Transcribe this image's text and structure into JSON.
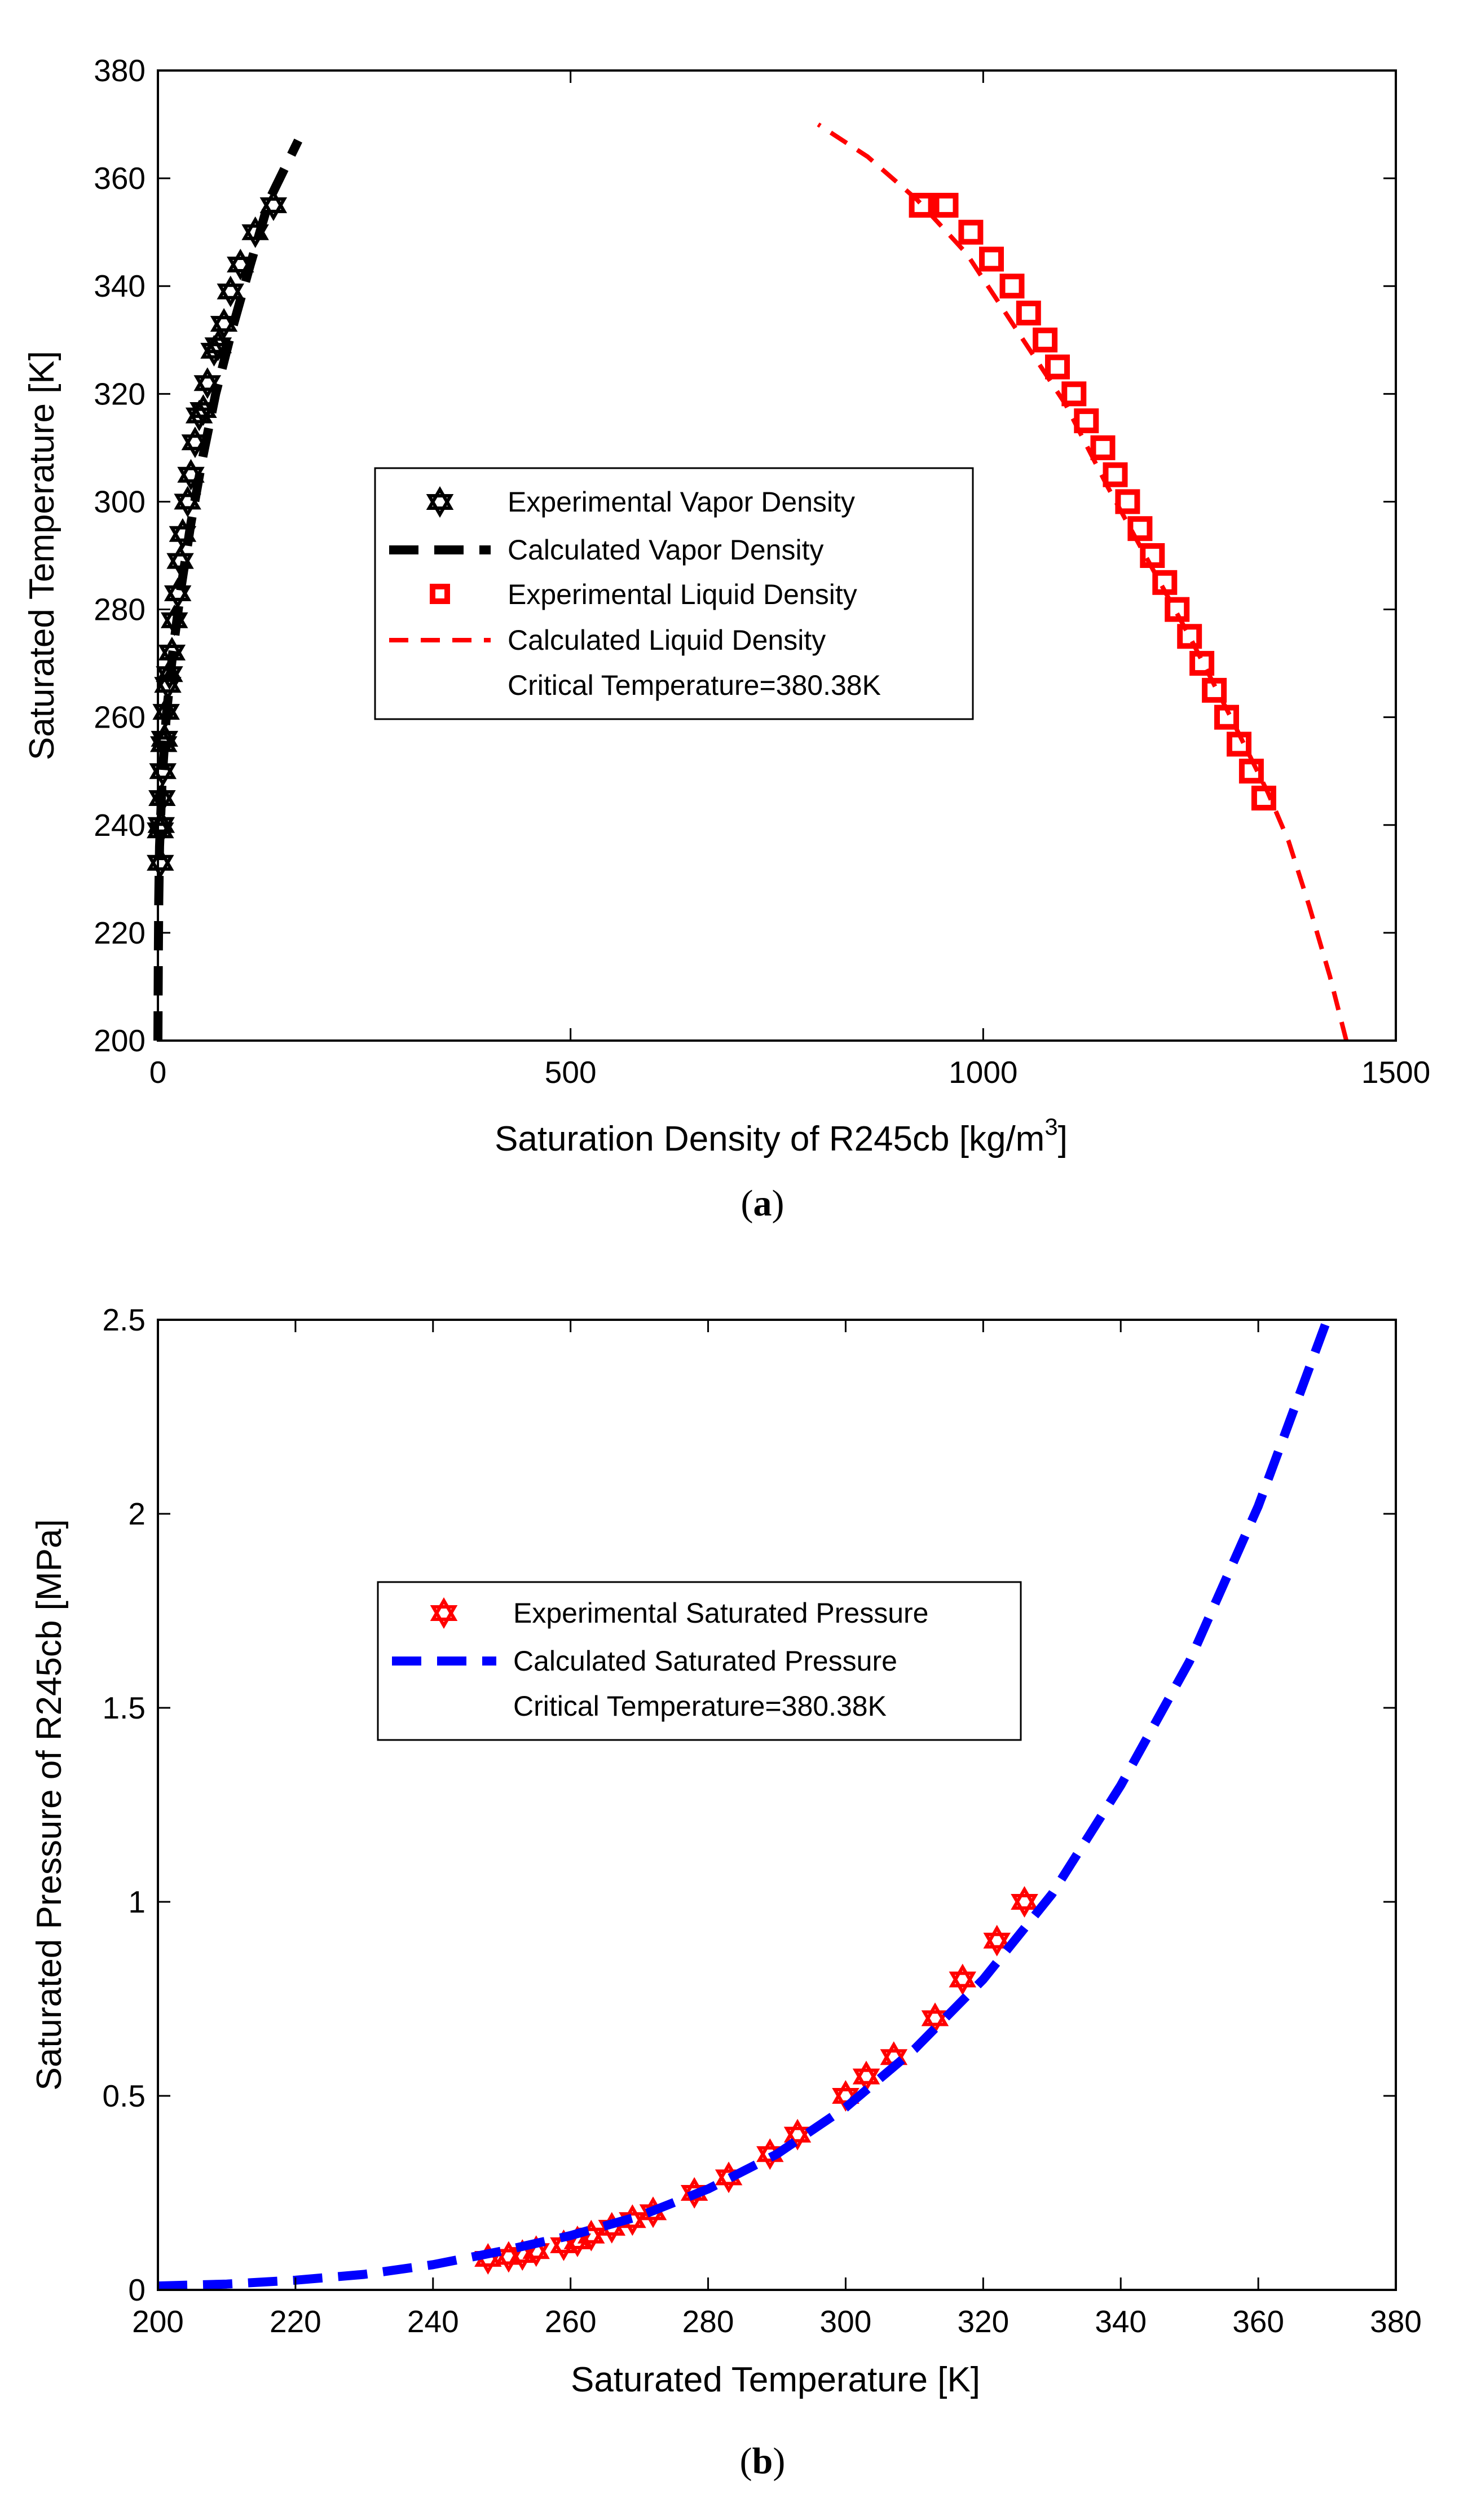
{
  "chart_data": [
    {
      "id": "a",
      "type": "scatter",
      "caption_letter": "a",
      "xlabel": "Saturation Density of R245cb [kg/m",
      "xlabel_sup": "3",
      "xlabel_end": "]",
      "ylabel": "Saturated Temperature [K]",
      "xlim": [
        0,
        1500
      ],
      "ylim": [
        200,
        380
      ],
      "xticks": [
        0,
        500,
        1000,
        1500
      ],
      "yticks": [
        200,
        220,
        240,
        260,
        280,
        300,
        320,
        340,
        360,
        380
      ],
      "grid": false,
      "legend_position": "center",
      "legend": [
        {
          "label": "Experimental Vapor Density",
          "marker": "hexagram",
          "color": "#000000"
        },
        {
          "label": "Calculated Vapor Density",
          "line": "dashed-thick",
          "color": "#000000"
        },
        {
          "label": "Experimental Liquid Density",
          "marker": "square",
          "color": "#ff0000"
        },
        {
          "label": "Calculated Liquid Density",
          "line": "dashed",
          "color": "#ff0000"
        },
        {
          "label": "Critical Temperature=380.38K",
          "marker": "none",
          "color": "#000000"
        }
      ],
      "series": [
        {
          "name": "Experimental Vapor Density",
          "color": "#000000",
          "points": [
            [
              3,
              233
            ],
            [
              3,
              239
            ],
            [
              4,
              240
            ],
            [
              5,
              245
            ],
            [
              6,
              250
            ],
            [
              7,
              255
            ],
            [
              8,
              256
            ],
            [
              10,
              261
            ],
            [
              12,
              266
            ],
            [
              14,
              268
            ],
            [
              17,
              272
            ],
            [
              20,
              278
            ],
            [
              24,
              283
            ],
            [
              27,
              289
            ],
            [
              30,
              294
            ],
            [
              36,
              300
            ],
            [
              40,
              305
            ],
            [
              45,
              311
            ],
            [
              50,
              316
            ],
            [
              55,
              317
            ],
            [
              60,
              322
            ],
            [
              68,
              328
            ],
            [
              73,
              329
            ],
            [
              80,
              333
            ],
            [
              88,
              339
            ],
            [
              100,
              344
            ],
            [
              118,
              350
            ],
            [
              140,
              355
            ]
          ]
        },
        {
          "name": "Calculated Vapor Density",
          "color": "#000000",
          "points": [
            [
              0,
              200
            ],
            [
              0.5,
              215
            ],
            [
              1,
              226
            ],
            [
              2,
              236
            ],
            [
              5,
              248
            ],
            [
              10,
              260
            ],
            [
              18,
              272
            ],
            [
              28,
              284
            ],
            [
              40,
              296
            ],
            [
              54,
              308
            ],
            [
              70,
              320
            ],
            [
              90,
              332
            ],
            [
              112,
              344
            ],
            [
              135,
              356
            ],
            [
              170,
              367
            ]
          ]
        },
        {
          "name": "Experimental Liquid Density",
          "color": "#ff0000",
          "points": [
            [
              1340,
              245
            ],
            [
              1325,
              250
            ],
            [
              1310,
              255
            ],
            [
              1295,
              260
            ],
            [
              1280,
              265
            ],
            [
              1265,
              270
            ],
            [
              1250,
              275
            ],
            [
              1235,
              280
            ],
            [
              1220,
              285
            ],
            [
              1205,
              290
            ],
            [
              1190,
              295
            ],
            [
              1175,
              300
            ],
            [
              1160,
              305
            ],
            [
              1145,
              310
            ],
            [
              1125,
              315
            ],
            [
              1110,
              320
            ],
            [
              1090,
              325
            ],
            [
              1075,
              330
            ],
            [
              1055,
              335
            ],
            [
              1035,
              340
            ],
            [
              1010,
              345
            ],
            [
              985,
              350
            ],
            [
              955,
              355
            ],
            [
              925,
              355
            ]
          ]
        },
        {
          "name": "Calculated Liquid Density",
          "color": "#ff0000",
          "points": [
            [
              1440,
              200
            ],
            [
              1420,
              212
            ],
            [
              1395,
              225
            ],
            [
              1370,
              237
            ],
            [
              1345,
              246
            ],
            [
              1300,
              260
            ],
            [
              1250,
              275
            ],
            [
              1200,
              289
            ],
            [
              1150,
              303
            ],
            [
              1100,
              318
            ],
            [
              1040,
              332
            ],
            [
              980,
              346
            ],
            [
              920,
              356
            ],
            [
              860,
              364
            ],
            [
              800,
              370
            ]
          ]
        }
      ]
    },
    {
      "id": "b",
      "type": "scatter",
      "caption_letter": "b",
      "xlabel": "Saturated Temperature [K]",
      "ylabel": "Saturated Pressure of R245cb [MPa]",
      "xlim": [
        200,
        380
      ],
      "ylim": [
        0,
        2.5
      ],
      "xticks": [
        200,
        220,
        240,
        260,
        280,
        300,
        320,
        340,
        360,
        380
      ],
      "yticks": [
        0,
        0.5,
        1,
        1.5,
        2,
        2.5
      ],
      "ytick_labels": [
        "0",
        "0.5",
        "1",
        "1.5",
        "2",
        "2.5"
      ],
      "grid": false,
      "legend_position": "center-left",
      "legend": [
        {
          "label": "Experimental Saturated Pressure",
          "marker": "hexagram",
          "color": "#ff0000"
        },
        {
          "label": "Calculated Saturated Pressure",
          "line": "dashed-thick",
          "color": "#0000ff"
        },
        {
          "label": "Critical Temperature=380.38K",
          "marker": "none",
          "color": "#000000"
        }
      ],
      "series": [
        {
          "name": "Experimental Saturated Pressure",
          "color": "#ff0000",
          "points": [
            [
              248,
              0.08
            ],
            [
              251,
              0.085
            ],
            [
              253,
              0.09
            ],
            [
              255,
              0.1
            ],
            [
              259,
              0.115
            ],
            [
              261,
              0.125
            ],
            [
              263,
              0.14
            ],
            [
              266,
              0.16
            ],
            [
              269,
              0.18
            ],
            [
              272,
              0.2
            ],
            [
              278,
              0.25
            ],
            [
              283,
              0.29
            ],
            [
              289,
              0.35
            ],
            [
              293,
              0.4
            ],
            [
              300,
              0.5
            ],
            [
              303,
              0.55
            ],
            [
              307,
              0.6
            ],
            [
              313,
              0.7
            ],
            [
              317,
              0.8
            ],
            [
              322,
              0.9
            ],
            [
              326,
              1.0
            ]
          ]
        },
        {
          "name": "Calculated Saturated Pressure",
          "color": "#0000ff",
          "points": [
            [
              200,
              0.01
            ],
            [
              210,
              0.015
            ],
            [
              220,
              0.025
            ],
            [
              230,
              0.04
            ],
            [
              240,
              0.065
            ],
            [
              250,
              0.1
            ],
            [
              260,
              0.14
            ],
            [
              270,
              0.19
            ],
            [
              280,
              0.26
            ],
            [
              290,
              0.35
            ],
            [
              300,
              0.47
            ],
            [
              310,
              0.62
            ],
            [
              320,
              0.8
            ],
            [
              330,
              1.02
            ],
            [
              340,
              1.3
            ],
            [
              350,
              1.62
            ],
            [
              360,
              2.02
            ],
            [
              370,
              2.5
            ]
          ]
        }
      ]
    }
  ]
}
